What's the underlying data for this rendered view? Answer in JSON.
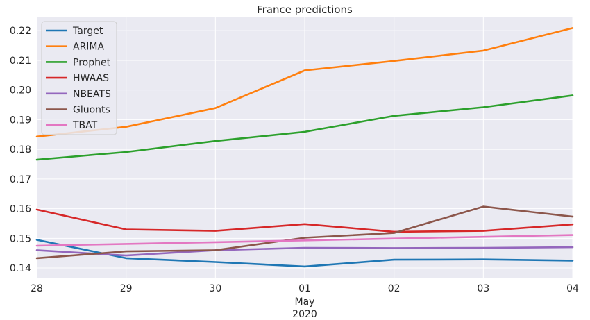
{
  "chart_data": {
    "type": "line",
    "title": "France predictions",
    "xlabel": "",
    "ylabel": "",
    "x": [
      "28",
      "29",
      "30",
      "01",
      "02",
      "03",
      "04"
    ],
    "x_dates": [
      "2020-04-28",
      "2020-04-29",
      "2020-04-30",
      "2020-05-01",
      "2020-05-02",
      "2020-05-03",
      "2020-05-04"
    ],
    "x_tick_labels": [
      "28",
      "29",
      "30",
      "01",
      "02",
      "03",
      "04"
    ],
    "x_month_label": "May",
    "x_year_label": "2020",
    "ylim": [
      0.1365,
      0.2245
    ],
    "y_ticks": [
      0.14,
      0.15,
      0.16,
      0.17,
      0.18,
      0.19,
      0.2,
      0.21,
      0.22
    ],
    "y_tick_labels": [
      "0.14",
      "0.15",
      "0.16",
      "0.17",
      "0.18",
      "0.19",
      "0.20",
      "0.21",
      "0.22"
    ],
    "grid": true,
    "legend_position": "top-left",
    "series": [
      {
        "name": "Target",
        "color": "#1f77b4",
        "values": [
          0.1495,
          0.1433,
          0.142,
          0.1405,
          0.1428,
          0.1429,
          0.1425
        ]
      },
      {
        "name": "ARIMA",
        "color": "#ff7f0e",
        "values": [
          0.1843,
          0.1876,
          0.1939,
          0.2066,
          0.2098,
          0.2133,
          0.2209
        ]
      },
      {
        "name": "Prophet",
        "color": "#2ca02c",
        "values": [
          0.1765,
          0.1791,
          0.1828,
          0.1859,
          0.1913,
          0.1942,
          0.1982
        ]
      },
      {
        "name": "HWAAS",
        "color": "#d62728",
        "values": [
          0.1597,
          0.153,
          0.1525,
          0.1548,
          0.1522,
          0.1525,
          0.1547
        ]
      },
      {
        "name": "NBEATS",
        "color": "#9467bd",
        "values": [
          0.146,
          0.1442,
          0.146,
          0.1468,
          0.1467,
          0.1468,
          0.147
        ]
      },
      {
        "name": "Gluonts",
        "color": "#8c564b",
        "values": [
          0.1433,
          0.1456,
          0.146,
          0.1502,
          0.1518,
          0.1607,
          0.1573
        ]
      },
      {
        "name": "TBAT",
        "color": "#e377c2",
        "values": [
          0.1475,
          0.1481,
          0.1487,
          0.1493,
          0.1499,
          0.1505,
          0.1511
        ]
      }
    ]
  }
}
